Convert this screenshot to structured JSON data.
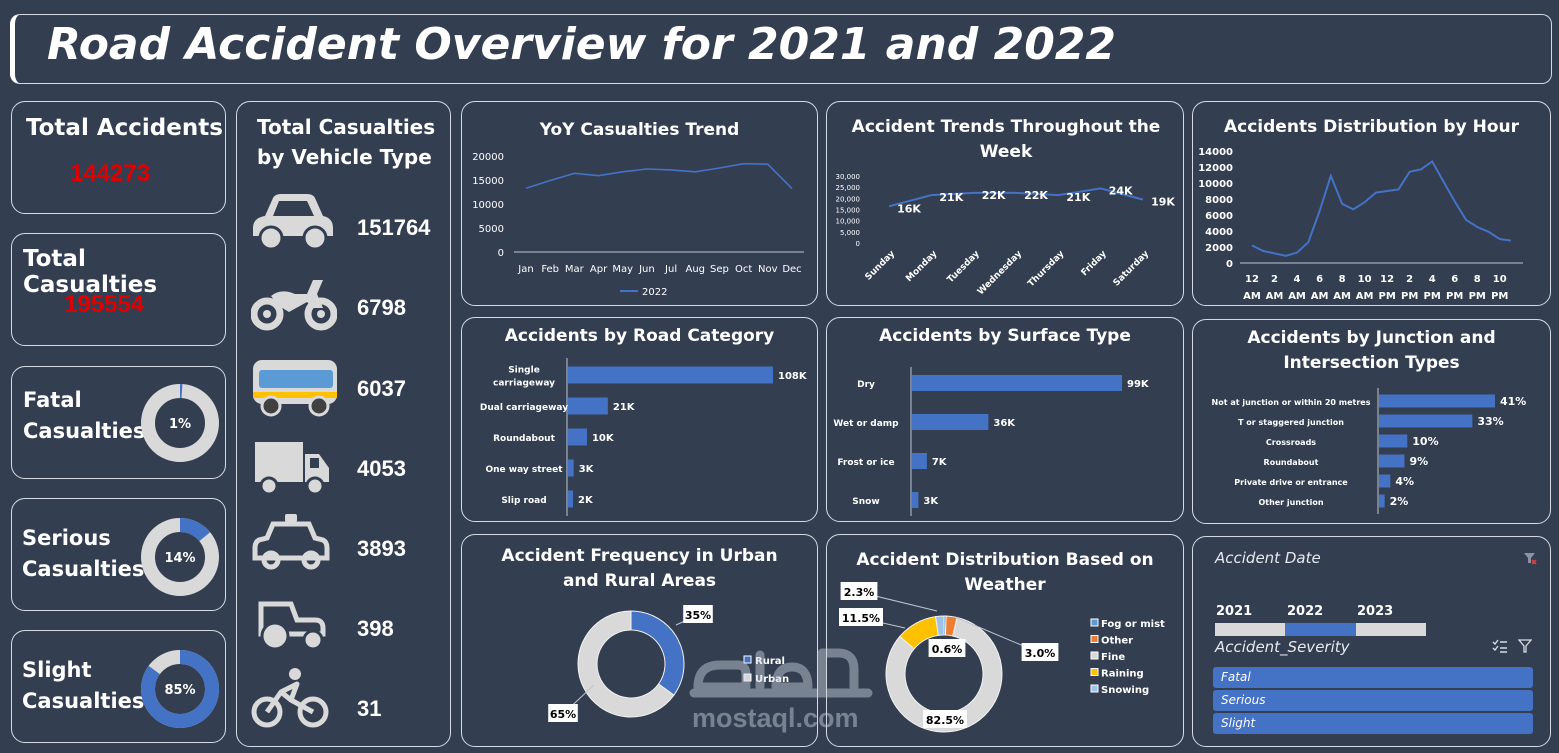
{
  "title": "Road Accident Overview for 2021 and 2022",
  "kpis": {
    "total_accidents": {
      "label": "Total Accidents",
      "value": "144273"
    },
    "total_casualties": {
      "label": "Total Casualties",
      "value": "195554"
    },
    "fatal": {
      "label1": "Fatal",
      "label2": "Casualties",
      "pct": "1%",
      "fraction": 0.01
    },
    "serious": {
      "label1": "Serious",
      "label2": "Casualties",
      "pct": "14%",
      "fraction": 0.14
    },
    "slight": {
      "label1": "Slight",
      "label2": "Casualties",
      "pct": "85%",
      "fraction": 0.85
    }
  },
  "vehicles": {
    "title1": "Total Casualties",
    "title2": "by  Vehicle Type",
    "items": [
      {
        "icon": "car-icon",
        "value": "151764"
      },
      {
        "icon": "motorcycle-icon",
        "value": "6798"
      },
      {
        "icon": "bus-icon",
        "value": "6037"
      },
      {
        "icon": "truck-icon",
        "value": "4053"
      },
      {
        "icon": "taxi-icon",
        "value": "3893"
      },
      {
        "icon": "tractor-icon",
        "value": "398"
      },
      {
        "icon": "bicycle-icon",
        "value": "31"
      }
    ]
  },
  "colors": {
    "accent": "#4472c4",
    "background": "#333e51",
    "ring_bg": "#d9d9d9",
    "kpi_value": "#e00000",
    "orange": "#ed7d31",
    "yellow": "#ffc000",
    "light_blue": "#5b9bd5"
  },
  "watermark": {
    "logo_text": "مستقل",
    "url_text": "mostaql.com"
  },
  "chart_data": [
    {
      "id": "yoy",
      "type": "line",
      "title": "YoY Casualties Trend",
      "categories": [
        "Jan",
        "Feb",
        "Mar",
        "Apr",
        "May",
        "Jun",
        "Jul",
        "Aug",
        "Sep",
        "Oct",
        "Nov",
        "Dec"
      ],
      "series": [
        {
          "name": "2022",
          "values": [
            13300,
            14900,
            16400,
            15900,
            16700,
            17300,
            17100,
            16700,
            17500,
            18400,
            18300,
            13200
          ]
        }
      ],
      "yticks": [
        "20000",
        "15000",
        "10000",
        "5000",
        "0"
      ],
      "ylim": [
        0,
        20000
      ],
      "legend": "bottom"
    },
    {
      "id": "week",
      "type": "line",
      "title": "Accident Trends Throughout the Week",
      "categories": [
        "Sunday",
        "Monday",
        "Tuesday",
        "Wednesday",
        "Thursday",
        "Friday",
        "Saturday"
      ],
      "values": [
        16000,
        21000,
        22000,
        22000,
        21000,
        24000,
        19000
      ],
      "data_labels": [
        "16K",
        "21K",
        "22K",
        "22K",
        "21K",
        "24K",
        "19K"
      ],
      "yticks": [
        "30,000",
        "25,000",
        "20,000",
        "15,000",
        "10,000",
        "5,000",
        "0"
      ],
      "ylim": [
        0,
        30000
      ]
    },
    {
      "id": "hour",
      "type": "line",
      "title": "Accidents Distribution by Hour",
      "x": [
        0,
        1,
        2,
        3,
        4,
        5,
        6,
        7,
        8,
        9,
        10,
        11,
        12,
        13,
        14,
        15,
        16,
        17,
        18,
        19,
        20,
        21,
        22,
        23
      ],
      "values": [
        2200,
        1500,
        1200,
        900,
        1300,
        2600,
        6500,
        10900,
        7400,
        6700,
        7600,
        8800,
        9000,
        9200,
        11400,
        11700,
        12700,
        10200,
        7700,
        5400,
        4500,
        3900,
        3000,
        2800
      ],
      "xtick_labels": [
        [
          "12",
          "AM"
        ],
        [
          "2",
          "AM"
        ],
        [
          "4",
          "AM"
        ],
        [
          "6",
          "AM"
        ],
        [
          "8",
          "AM"
        ],
        [
          "10",
          "AM"
        ],
        [
          "12",
          "PM"
        ],
        [
          "2",
          "PM"
        ],
        [
          "4",
          "PM"
        ],
        [
          "6",
          "PM"
        ],
        [
          "8",
          "PM"
        ],
        [
          "10",
          "PM"
        ]
      ],
      "yticks": [
        "14000",
        "12000",
        "10000",
        "8000",
        "6000",
        "4000",
        "2000",
        "0"
      ],
      "ylim": [
        0,
        14000
      ]
    },
    {
      "id": "road",
      "type": "bar",
      "title": "Accidents by Road Category",
      "categories": [
        [
          "Single",
          "carriageway"
        ],
        [
          "Dual carriageway"
        ],
        [
          "Roundabout"
        ],
        [
          "One way street"
        ],
        [
          "Slip road"
        ]
      ],
      "values": [
        108000,
        21000,
        10000,
        3000,
        2000
      ],
      "data_labels": [
        "108K",
        "21K",
        "10K",
        "3K",
        "2K"
      ]
    },
    {
      "id": "surface",
      "type": "bar",
      "title": "Accidents by Surface Type",
      "categories": [
        [
          "Dry"
        ],
        [
          "Wet or damp"
        ],
        [
          "Frost or ice"
        ],
        [
          "Snow"
        ]
      ],
      "values": [
        99000,
        36000,
        7000,
        3000
      ],
      "data_labels": [
        "99K",
        "36K",
        "7K",
        "3K"
      ]
    },
    {
      "id": "junction",
      "type": "bar",
      "title": "Accidents by Junction and Intersection Types",
      "title_lines": [
        "Accidents by Junction and",
        "Intersection Types"
      ],
      "categories": [
        [
          "Not at junction or within 20 metres"
        ],
        [
          "T or staggered junction"
        ],
        [
          "Crossroads"
        ],
        [
          "Roundabout"
        ],
        [
          "Private drive or entrance"
        ],
        [
          "Other junction"
        ]
      ],
      "values": [
        41,
        33,
        10,
        9,
        4,
        2
      ],
      "data_labels": [
        "41%",
        "33%",
        "10%",
        "9%",
        "4%",
        "2%"
      ]
    },
    {
      "id": "urban",
      "type": "pie",
      "title_lines": [
        "Accident Frequency in Urban",
        "and Rural Areas"
      ],
      "slices": [
        {
          "name": "Rural",
          "value": 35,
          "label": "35%"
        },
        {
          "name": "Urban",
          "value": 65,
          "label": "65%"
        }
      ]
    },
    {
      "id": "weather",
      "type": "pie",
      "title_lines": [
        "Accident Distribution Based on",
        "Weather"
      ],
      "slices": [
        {
          "name": "Fog or mist",
          "value": 0.6,
          "label": "0.6%"
        },
        {
          "name": "Other",
          "value": 3.0,
          "label": "3.0%"
        },
        {
          "name": "Fine",
          "value": 82.5,
          "label": "82.5%"
        },
        {
          "name": "Raining",
          "value": 11.5,
          "label": "11.5%"
        },
        {
          "name": "Snowing",
          "value": 2.3,
          "label": "2.3%"
        }
      ]
    }
  ],
  "slicer_date": {
    "title": "Accident  Date",
    "years": [
      "2021",
      "2022",
      "2023"
    ],
    "selected": "2022"
  },
  "slicer_severity": {
    "title": "Accident_Severity",
    "items": [
      "Fatal",
      "Serious",
      "Slight"
    ]
  }
}
